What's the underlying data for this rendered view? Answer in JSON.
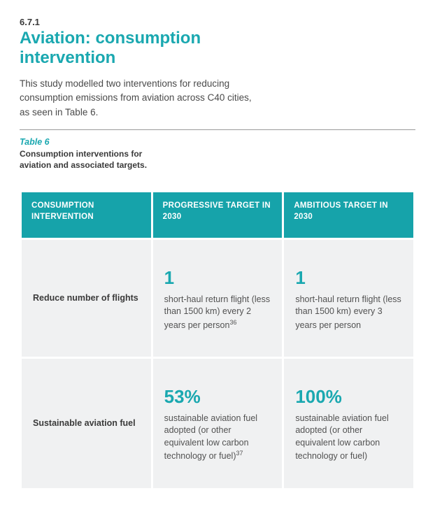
{
  "section_number": "6.7.1",
  "title": "Aviation: consumption intervention",
  "intro": "This study modelled two interventions for reducing consumption emissions from aviation across C40 cities, as seen in Table 6.",
  "table_label": "Table 6",
  "table_caption": "Consumption interventions for aviation and associated targets.",
  "colors": {
    "accent": "#1aa8b0",
    "header_bg": "#16a3aa",
    "header_text": "#ffffff",
    "cell_bg": "#f0f1f2",
    "body_text": "#525252",
    "rowhead_text": "#3a3a3a"
  },
  "table": {
    "columns": [
      "CONSUMPTION INTERVENTION",
      "PROGRESSIVE TARGET IN 2030",
      "AMBITIOUS TARGET IN 2030"
    ],
    "rows": [
      {
        "label": "Reduce number of flights",
        "progressive": {
          "big": "1",
          "text": "short-haul return flight (less than 1500 km) every 2 years per person",
          "footnote": "36"
        },
        "ambitious": {
          "big": "1",
          "text": "short-haul return flight (less than 1500 km) every 3 years per person",
          "footnote": ""
        }
      },
      {
        "label": "Sustainable aviation fuel",
        "progressive": {
          "big": "53%",
          "text": "sustainable aviation fuel adopted (or other equivalent low carbon technology or fuel)",
          "footnote": "37"
        },
        "ambitious": {
          "big": "100%",
          "text": "sustainable aviation fuel adopted (or other equivalent low carbon technology or fuel)",
          "footnote": ""
        }
      }
    ]
  }
}
